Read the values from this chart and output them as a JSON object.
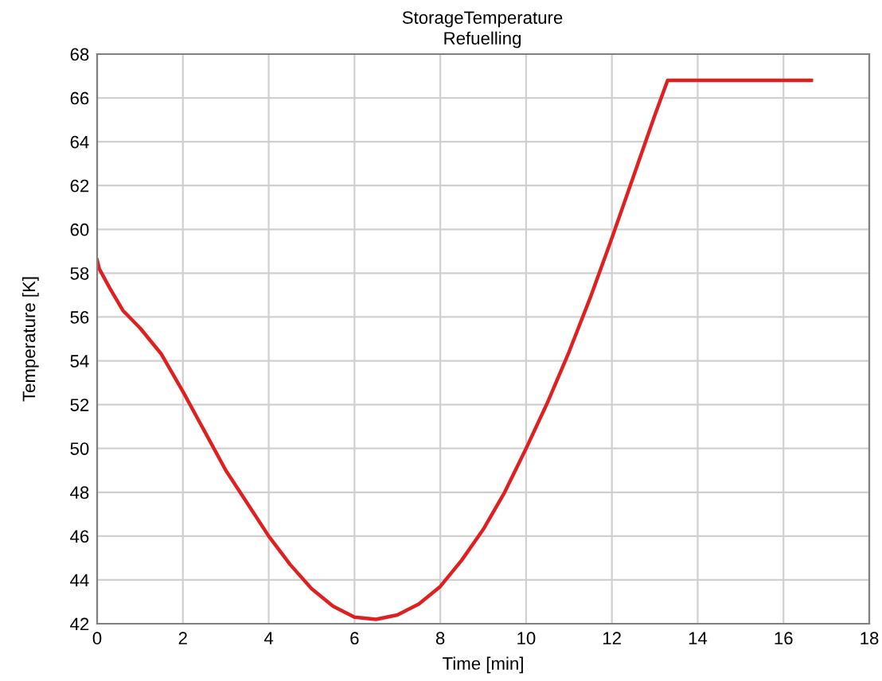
{
  "chart_data": {
    "type": "line",
    "title": "StorageTemperature",
    "subtitle": "Refuelling",
    "xlabel": "Time [min]",
    "ylabel": "Temperature [K]",
    "series": [
      {
        "color": "#e02020",
        "x": [
          0,
          0.05,
          0.3,
          0.6,
          1,
          1.5,
          2,
          2.5,
          3,
          3.5,
          4,
          4.5,
          5,
          5.5,
          6,
          6.5,
          7,
          7.5,
          8,
          8.5,
          9,
          9.5,
          10,
          10.5,
          11,
          11.5,
          12,
          12.5,
          13,
          13.3,
          16.65
        ],
        "values": [
          58.6,
          58.2,
          57.3,
          56.3,
          55.5,
          54.3,
          52.6,
          50.8,
          49.0,
          47.5,
          46.0,
          44.7,
          43.6,
          42.8,
          42.3,
          42.2,
          42.4,
          42.9,
          43.7,
          44.9,
          46.3,
          48.0,
          50.0,
          52.1,
          54.4,
          56.9,
          59.6,
          62.4,
          65.2,
          66.8,
          66.8
        ]
      }
    ],
    "xlim": [
      0,
      18
    ],
    "xticks": [
      0,
      2,
      4,
      6,
      8,
      10,
      12,
      14,
      16,
      18
    ],
    "ylim": [
      42,
      68
    ],
    "yticks": [
      42,
      44,
      46,
      48,
      50,
      52,
      54,
      56,
      58,
      60,
      62,
      64,
      66,
      68
    ],
    "grid": true,
    "line_style": "solid",
    "marker": "none"
  }
}
